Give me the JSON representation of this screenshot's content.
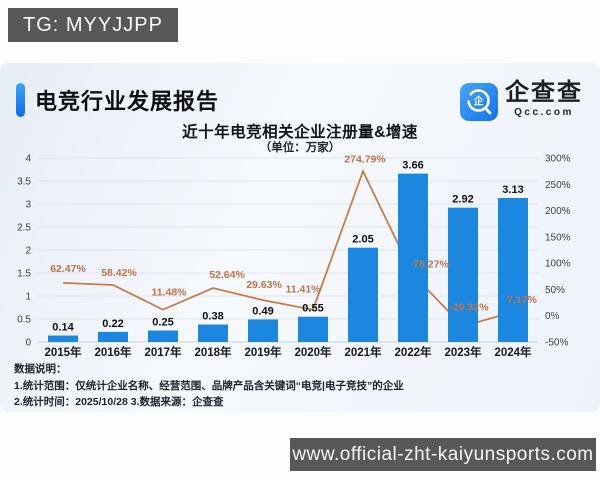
{
  "top_left_tag": "TG: MYYJJPP",
  "watermark": "www.official-zht-kaiyunsports.com",
  "report": {
    "title": "电竞行业发展报告",
    "logo": {
      "name": "企查查",
      "domain": "Qcc.com",
      "brand_color": "#2b8df0"
    }
  },
  "chart_data": {
    "type": "bar+line",
    "title": "近十年电竞相关企业注册量&增速",
    "subtitle": "（单位：万家）",
    "categories": [
      "2015年",
      "2016年",
      "2017年",
      "2018年",
      "2019年",
      "2020年",
      "2021年",
      "2022年",
      "2023年",
      "2024年"
    ],
    "registrations": {
      "type": "bar",
      "axis": "left",
      "values": [
        0.14,
        0.22,
        0.25,
        0.38,
        0.49,
        0.55,
        2.05,
        3.66,
        2.92,
        3.13
      ],
      "labels": [
        "0.14",
        "0.22",
        "0.25",
        "0.38",
        "0.49",
        "0.55",
        "2.05",
        "3.66",
        "2.92",
        "3.13"
      ],
      "color": "#1b87de"
    },
    "growth": {
      "type": "line",
      "axis": "right",
      "values": [
        62.47,
        58.42,
        11.48,
        52.64,
        29.63,
        11.41,
        274.79,
        78.27,
        -20.32,
        7.17
      ],
      "labels": [
        "62.47%",
        "58.42%",
        "11.48%",
        "52.64%",
        "29.63%",
        "11.41%",
        "274.79%",
        "78.27%",
        "-20.32%",
        "7.17%"
      ],
      "color": "#c77b49"
    },
    "left_axis": {
      "min": 0,
      "max": 4,
      "step": 0.5,
      "ticks": [
        "0",
        "0.5",
        "1",
        "1.5",
        "2",
        "2.5",
        "3",
        "3.5",
        "4"
      ]
    },
    "right_axis": {
      "min": -50,
      "max": 300,
      "step": 50,
      "ticks": [
        "-50%",
        "0%",
        "50%",
        "100%",
        "150%",
        "200%",
        "250%",
        "300%"
      ]
    },
    "grid": true,
    "legend": "none"
  },
  "notes": {
    "heading": "数据说明：",
    "line1": "1.统计范围：仅统计企业名称、经营范围、品牌产品含关键词“电竞|电子竞技”的企业",
    "line2": "2.统计时间：2025/10/28 3.数据来源：企查查"
  }
}
